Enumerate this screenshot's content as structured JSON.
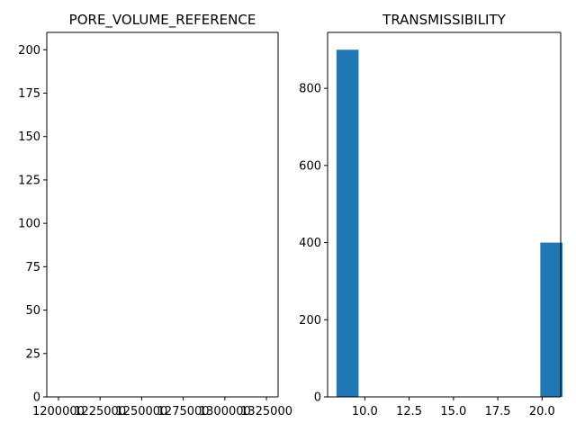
{
  "chart_data": [
    {
      "type": "bar",
      "title": "PORE_VOLUME_REFERENCE",
      "xlabel": "",
      "ylabel": "",
      "xlim": [
        1193000,
        1332000
      ],
      "ylim": [
        0,
        210
      ],
      "xticks": [
        1200000,
        1225000,
        1250000,
        1275000,
        1300000,
        1325000
      ],
      "xtick_labels": [
        "1200000",
        "1225000",
        "1250000",
        "1275000",
        "1300000",
        "1325000"
      ],
      "yticks": [
        0,
        25,
        50,
        75,
        100,
        125,
        150,
        175,
        200
      ],
      "ytick_labels": [
        "0",
        "25",
        "50",
        "75",
        "100",
        "125",
        "150",
        "175",
        "200"
      ],
      "bins": [],
      "grid": false,
      "color": "#1f77b4"
    },
    {
      "type": "bar",
      "title": "TRANSMISSIBILITY",
      "xlabel": "",
      "ylabel": "",
      "xlim": [
        7.9,
        21.05
      ],
      "ylim": [
        0,
        945
      ],
      "xticks": [
        10.0,
        12.5,
        15.0,
        17.5,
        20.0
      ],
      "xtick_labels": [
        "10.0",
        "12.5",
        "15.0",
        "17.5",
        "20.0"
      ],
      "yticks": [
        0,
        200,
        400,
        600,
        800
      ],
      "ytick_labels": [
        "0",
        "200",
        "400",
        "600",
        "800"
      ],
      "bins": [
        {
          "x0": 8.4,
          "x1": 9.65,
          "value": 900
        },
        {
          "x0": 19.9,
          "x1": 21.15,
          "value": 400
        }
      ],
      "grid": false,
      "color": "#1f77b4"
    }
  ]
}
